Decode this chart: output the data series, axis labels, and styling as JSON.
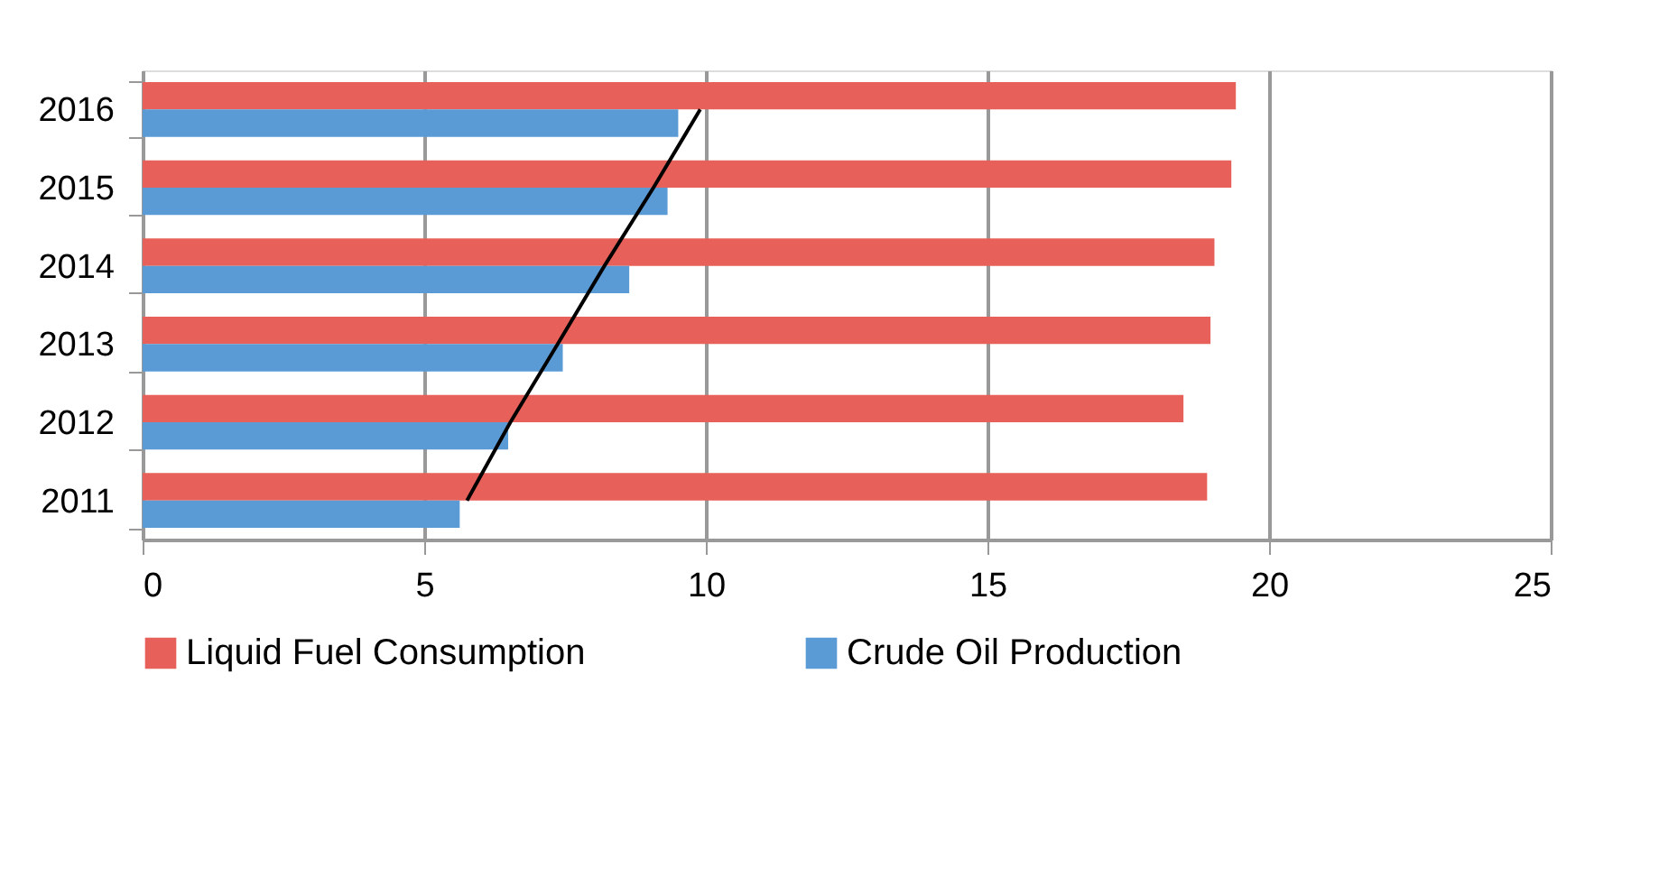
{
  "chart_data": {
    "type": "bar",
    "orientation": "horizontal",
    "categories": [
      "2016",
      "2015",
      "2014",
      "2013",
      "2012",
      "2011"
    ],
    "series": [
      {
        "name": "Liquid Fuel Consumption",
        "color": "#e8605a",
        "values": [
          19.41,
          19.33,
          19.03,
          18.96,
          18.48,
          18.9
        ]
      },
      {
        "name": "Crude Oil Production",
        "color": "#5b9bd5",
        "values": [
          9.51,
          9.32,
          8.64,
          7.46,
          6.49,
          5.63
        ]
      },
      {
        "type": "line",
        "color": "#000000",
        "values": [
          9.9,
          9.07,
          8.2,
          7.37,
          6.53,
          5.76
        ]
      }
    ],
    "xlim": [
      0,
      25
    ],
    "xticks": [
      0,
      5,
      10,
      15,
      20,
      25
    ],
    "grid": "x",
    "legend": "bottom"
  }
}
